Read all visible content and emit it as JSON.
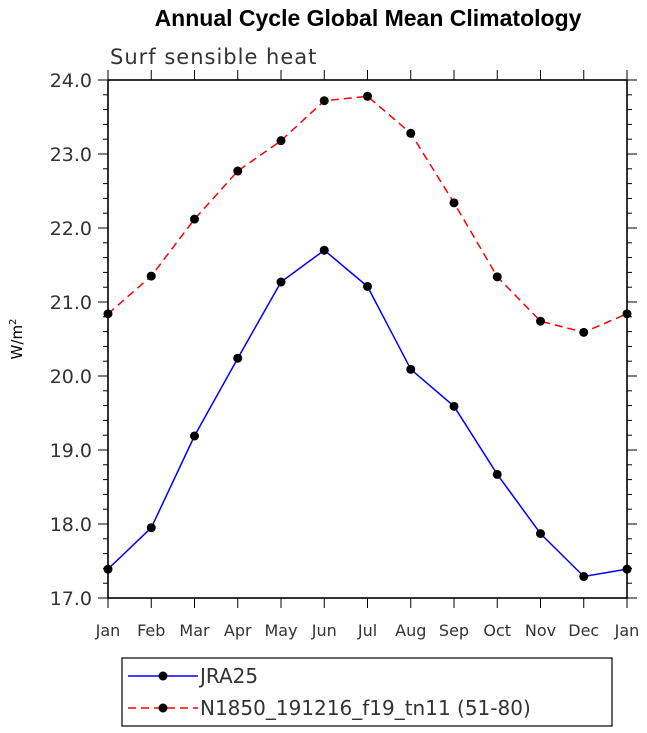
{
  "chart_data": {
    "type": "line",
    "title": "Annual Cycle Global Mean Climatology",
    "subtitle": "Surf sensible heat",
    "ylabel": "W/m",
    "ylabel_sup": "2",
    "xlabel": "",
    "ylim": [
      17.0,
      24.0
    ],
    "yticks": [
      "17.0",
      "18.0",
      "19.0",
      "20.0",
      "21.0",
      "22.0",
      "23.0",
      "24.0"
    ],
    "categories": [
      "Jan",
      "Feb",
      "Mar",
      "Apr",
      "May",
      "Jun",
      "Jul",
      "Aug",
      "Sep",
      "Oct",
      "Nov",
      "Dec",
      "Jan"
    ],
    "series": [
      {
        "name": "JRA25",
        "color": "#0000ff",
        "dash": "solid",
        "values": [
          17.39,
          17.95,
          19.19,
          20.24,
          21.27,
          21.7,
          21.21,
          20.09,
          19.59,
          18.67,
          17.87,
          17.29,
          17.39
        ]
      },
      {
        "name": "N1850_191216_f19_tn11 (51-80)",
        "color": "#ff0000",
        "dash": "dashed",
        "values": [
          20.84,
          21.35,
          22.12,
          22.77,
          23.18,
          23.72,
          23.78,
          23.28,
          22.34,
          21.34,
          20.74,
          20.59,
          20.84
        ]
      }
    ],
    "legend": "bottom"
  }
}
